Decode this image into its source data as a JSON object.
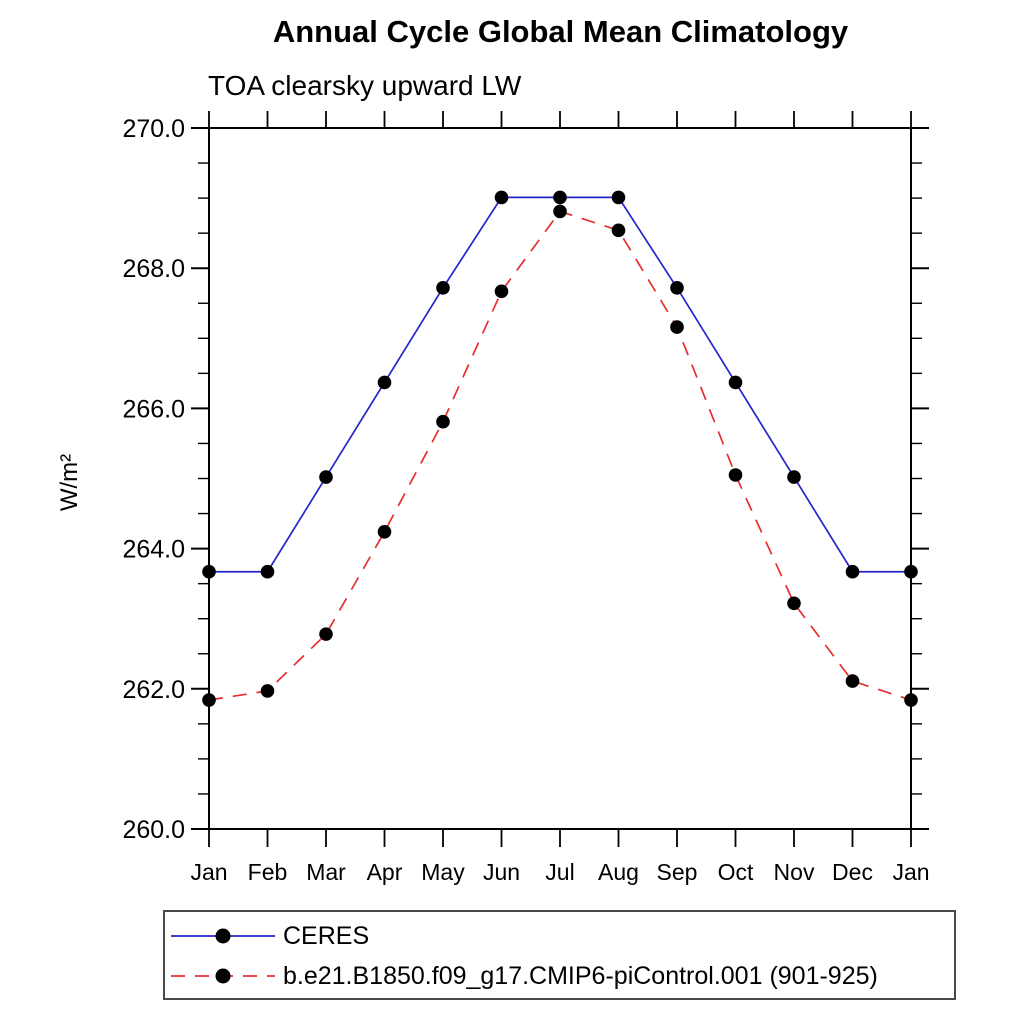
{
  "header": {
    "title": "Annual Cycle Global Mean Climatology",
    "subtitle": "TOA clearsky upward LW"
  },
  "chart_data": {
    "type": "line",
    "title": "Annual Cycle Global Mean Climatology",
    "subtitle": "TOA clearsky upward LW",
    "xlabel": "",
    "ylabel": "W/m²",
    "x_tick_labels": [
      "Jan",
      "Feb",
      "Mar",
      "Apr",
      "May",
      "Jun",
      "Jul",
      "Aug",
      "Sep",
      "Oct",
      "Nov",
      "Dec",
      "Jan"
    ],
    "ylim": [
      260.0,
      270.0
    ],
    "y_major_tick_step": 2.0,
    "y_minor_tick_step": 0.5,
    "y_tick_labels": [
      "260.0",
      "262.0",
      "264.0",
      "266.0",
      "268.0",
      "270.0"
    ],
    "grid": false,
    "legend_position": "bottom-left-boxed",
    "axis_color": "#000000",
    "marker_color": "#000000",
    "series": [
      {
        "name": "CERES",
        "color": "#2525cd",
        "line_style": "solid",
        "marker": "filled-circle",
        "values": [
          263.67,
          263.67,
          265.02,
          266.37,
          267.72,
          269.01,
          269.01,
          269.01,
          267.72,
          266.37,
          265.02,
          263.67,
          263.67
        ]
      },
      {
        "name": "b.e21.B1850.f09_g17.CMIP6-piControl.001 (901-925)",
        "color": "#e62e2e",
        "line_style": "dashed",
        "marker": "filled-circle",
        "values": [
          261.84,
          261.97,
          262.78,
          264.24,
          265.81,
          267.67,
          268.81,
          268.54,
          267.16,
          265.05,
          263.22,
          262.11,
          261.84
        ]
      }
    ]
  }
}
